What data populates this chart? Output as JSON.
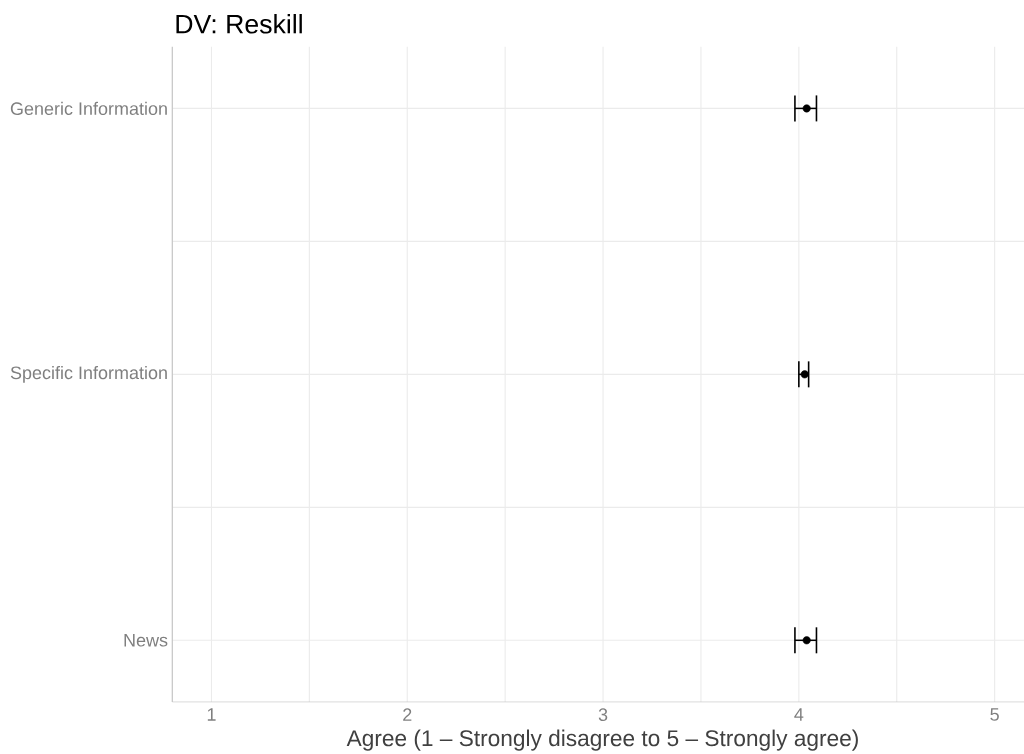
{
  "chart_data": {
    "type": "scatter",
    "orientation": "horizontal",
    "title": "DV: Reskill",
    "xlabel": "Agree (1 – Strongly disagree to 5 – Strongly agree)",
    "categories": [
      "Generic Information",
      "Specific Information",
      "News"
    ],
    "values": [
      4.04,
      4.03,
      4.04
    ],
    "errors": [
      [
        3.98,
        4.09
      ],
      [
        4.0,
        4.05
      ],
      [
        3.98,
        4.09
      ]
    ],
    "color": "#000000",
    "marker": "circle",
    "xlim": [
      0.8,
      5.15
    ],
    "xticks": [
      1,
      2,
      3,
      4,
      5
    ],
    "grid": true
  }
}
